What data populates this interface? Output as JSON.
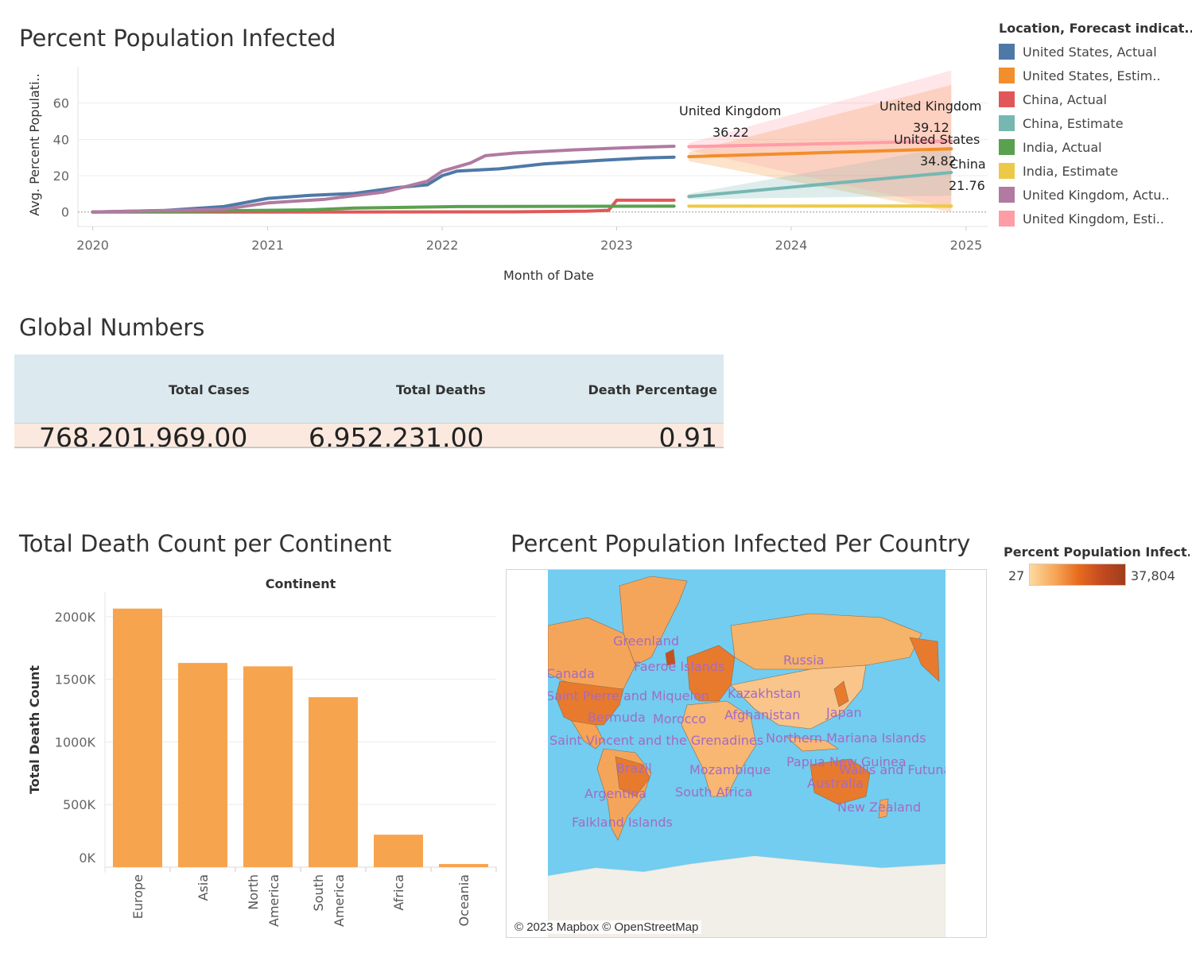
{
  "line_chart": {
    "title": "Percent Population Infected",
    "ylabel": "Avg. Percent Populati..",
    "xlabel": "Month of Date",
    "legend_title": "Location, Forecast indicat..",
    "legend": [
      {
        "label": "United States, Actual",
        "color": "#4e79a7"
      },
      {
        "label": "United States, Estim..",
        "color": "#f28e2b"
      },
      {
        "label": "China, Actual",
        "color": "#e15759"
      },
      {
        "label": "China, Estimate",
        "color": "#76b7b2"
      },
      {
        "label": "India, Actual",
        "color": "#59a14f"
      },
      {
        "label": "India, Estimate",
        "color": "#edc948"
      },
      {
        "label": "United Kingdom, Actu..",
        "color": "#b07aa1"
      },
      {
        "label": "United Kingdom, Esti..",
        "color": "#ff9da7"
      }
    ],
    "annotations": [
      {
        "name": "United Kingdom",
        "value": "36.22"
      },
      {
        "name": "United Kingdom",
        "value": "39.12"
      },
      {
        "name": "United States",
        "value": "34.82"
      },
      {
        "name": "China",
        "value": "21.76"
      }
    ]
  },
  "global_numbers": {
    "title": "Global Numbers",
    "headers": [
      "Total Cases",
      "Total Deaths",
      "Death Percentage"
    ],
    "values": [
      "768,201,969.00",
      "6,952,231.00",
      "0.91"
    ]
  },
  "bar_section": {
    "title": "Total Death Count per Continent",
    "column_header": "Continent",
    "ylabel": "Total Death Count",
    "tick_labels": [
      "0K",
      "500K",
      "1000K",
      "1500K",
      "2000K"
    ],
    "category_labels": [
      [
        "Europe"
      ],
      [
        "Asia"
      ],
      [
        "North",
        "America"
      ],
      [
        "South",
        "America"
      ],
      [
        "Africa"
      ],
      [
        "Oceania"
      ]
    ]
  },
  "map": {
    "title": "Percent Population Infected Per Country",
    "credit": "© 2023 Mapbox © OpenStreetMap",
    "legend_title": "Percent Population Infect..",
    "legend_min": "27",
    "legend_max": "37,804",
    "labels": [
      "Greenland",
      "Faeroe Islands",
      "Russia",
      "Canada",
      "Saint Pierre and Miquelon",
      "Kazakhstan",
      "Bermuda",
      "Morocco",
      "Afghanistan",
      "Japan",
      "Saint Vincent and the Grenadines",
      "Northern Mariana Islands",
      "Brazil",
      "Mozambique",
      "Papua New Guinea",
      "Wallis and Futuna",
      "Argentina",
      "South Africa",
      "Australia",
      "New Zealand",
      "Falkland Islands"
    ]
  },
  "chart_data": [
    {
      "type": "line",
      "title": "Percent Population Infected",
      "xlabel": "Month of Date",
      "ylabel": "Avg. Percent Populati..",
      "xlim": [
        "2019-12-01",
        "2025-02-15"
      ],
      "ylim": [
        -8,
        80
      ],
      "x_ticks": [
        "2020",
        "2021",
        "2022",
        "2023",
        "2024",
        "2025"
      ],
      "y_ticks": [
        0,
        20,
        40,
        60
      ],
      "series": [
        {
          "name": "United States, Actual",
          "color": "#4e79a7",
          "x": [
            "2020-01-01",
            "2020-06-01",
            "2020-10-01",
            "2021-01-01",
            "2021-04-01",
            "2021-07-01",
            "2021-10-01",
            "2021-12-01",
            "2022-01-01",
            "2022-02-01",
            "2022-05-01",
            "2022-08-01",
            "2022-12-01",
            "2023-03-01",
            "2023-05-01"
          ],
          "y": [
            0.0,
            0.9,
            3.0,
            7.5,
            9.2,
            10.2,
            13.5,
            15.0,
            20.0,
            22.5,
            23.8,
            26.5,
            28.5,
            29.8,
            30.2
          ]
        },
        {
          "name": "United States, Estim..",
          "color": "#f28e2b",
          "x": [
            "2023-06-01",
            "2024-12-01"
          ],
          "y": [
            30.5,
            34.82
          ],
          "band_upper": [
            33.0,
            70.0
          ],
          "band_lower": [
            28.0,
            0.0
          ]
        },
        {
          "name": "China, Actual",
          "color": "#e15759",
          "x": [
            "2020-01-01",
            "2021-06-01",
            "2022-06-01",
            "2022-11-01",
            "2022-12-15",
            "2023-01-01",
            "2023-05-01"
          ],
          "y": [
            0.0,
            0.0,
            0.1,
            0.5,
            0.9,
            6.5,
            6.5
          ]
        },
        {
          "name": "China, Estimate",
          "color": "#76b7b2",
          "x": [
            "2023-06-01",
            "2024-12-01"
          ],
          "y": [
            8.5,
            21.76
          ],
          "band_upper": [
            10.0,
            36.0
          ],
          "band_lower": [
            7.0,
            9.0
          ]
        },
        {
          "name": "India, Actual",
          "color": "#59a14f",
          "x": [
            "2020-01-01",
            "2020-09-01",
            "2021-04-01",
            "2021-07-01",
            "2022-02-01",
            "2023-05-01"
          ],
          "y": [
            0.0,
            0.6,
            1.2,
            2.2,
            3.0,
            3.2
          ]
        },
        {
          "name": "India, Estimate",
          "color": "#edc948",
          "x": [
            "2023-06-01",
            "2024-12-01"
          ],
          "y": [
            3.2,
            3.3
          ],
          "band_upper": [
            3.8,
            4.5
          ],
          "band_lower": [
            2.6,
            2.2
          ]
        },
        {
          "name": "United Kingdom, Actu..",
          "color": "#b07aa1",
          "x": [
            "2020-01-01",
            "2020-10-01",
            "2021-01-01",
            "2021-05-01",
            "2021-09-01",
            "2021-12-01",
            "2022-01-01",
            "2022-03-01",
            "2022-04-01",
            "2022-06-01",
            "2022-10-01",
            "2023-02-01",
            "2023-05-01"
          ],
          "y": [
            0.0,
            1.5,
            5.0,
            7.0,
            11.0,
            17.0,
            22.5,
            27.0,
            31.0,
            32.5,
            34.2,
            35.5,
            36.22
          ]
        },
        {
          "name": "United Kingdom, Esti..",
          "color": "#ff9da7",
          "x": [
            "2023-06-01",
            "2024-12-01"
          ],
          "y": [
            36.0,
            39.12
          ],
          "band_upper": [
            38.0,
            78.0
          ],
          "band_lower": [
            34.0,
            2.0
          ]
        }
      ]
    },
    {
      "type": "bar",
      "title": "Total Death Count per Continent",
      "xlabel": "Continent",
      "ylabel": "Total Death Count",
      "categories": [
        "Europe",
        "Asia",
        "North America",
        "South America",
        "Africa",
        "Oceania"
      ],
      "values": [
        2064000,
        1630000,
        1603000,
        1357000,
        259000,
        25000
      ],
      "ylim": [
        0,
        2100000
      ],
      "color": "#f7a44e"
    }
  ]
}
